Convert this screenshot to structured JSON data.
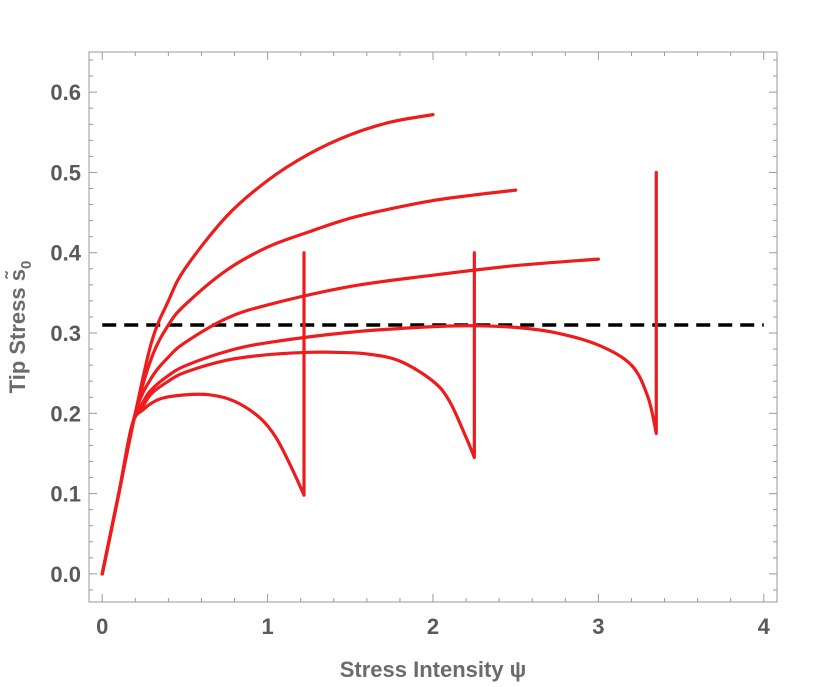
{
  "chart_data": {
    "type": "line",
    "xlabel": "Stress Intensity ψ",
    "ylabel": "Tip Stress s̃",
    "ylabel_subscript": "0",
    "xlim": [
      -0.08,
      4.08
    ],
    "ylim": [
      -0.035,
      0.65
    ],
    "x_ticks": [
      "0",
      "1",
      "2",
      "3",
      "4"
    ],
    "y_ticks": [
      "0.0",
      "0.1",
      "0.2",
      "0.3",
      "0.4",
      "0.5",
      "0.6"
    ],
    "threshold": {
      "y": 0.31,
      "x_range": [
        0,
        4
      ],
      "color": "#000000",
      "style": "dashed"
    },
    "series_color": "#ee1c1c",
    "series": [
      {
        "x": [
          0,
          0.1,
          0.2,
          0.3,
          0.4,
          0.5,
          0.75,
          1.0,
          1.25,
          1.5,
          1.75,
          2.0
        ],
        "y": [
          0,
          0.1,
          0.2,
          0.29,
          0.34,
          0.38,
          0.445,
          0.49,
          0.523,
          0.547,
          0.563,
          0.572
        ]
      },
      {
        "x": [
          0,
          0.1,
          0.2,
          0.3,
          0.4,
          0.5,
          0.75,
          1.0,
          1.25,
          1.5,
          1.75,
          2.0,
          2.25,
          2.5
        ],
        "y": [
          0,
          0.1,
          0.2,
          0.27,
          0.31,
          0.335,
          0.378,
          0.407,
          0.426,
          0.443,
          0.455,
          0.465,
          0.472,
          0.478
        ]
      },
      {
        "x": [
          0,
          0.1,
          0.2,
          0.3,
          0.4,
          0.5,
          0.75,
          1.0,
          1.5,
          2.0,
          2.5,
          3.0
        ],
        "y": [
          0,
          0.1,
          0.2,
          0.245,
          0.27,
          0.288,
          0.318,
          0.335,
          0.358,
          0.372,
          0.384,
          0.392
        ]
      },
      {
        "x": [
          0,
          0.1,
          0.18,
          0.25,
          0.3,
          0.4,
          0.5,
          0.75,
          1.0,
          1.5,
          2.0,
          2.25,
          2.5,
          2.75,
          3.0,
          3.2,
          3.3,
          3.35,
          3.35
        ],
        "y": [
          0,
          0.1,
          0.185,
          0.215,
          0.23,
          0.247,
          0.259,
          0.277,
          0.288,
          0.301,
          0.308,
          0.309,
          0.307,
          0.3,
          0.285,
          0.26,
          0.22,
          0.175,
          0.5
        ]
      },
      {
        "x": [
          0,
          0.1,
          0.18,
          0.25,
          0.3,
          0.4,
          0.5,
          0.75,
          1.0,
          1.25,
          1.4,
          1.6,
          1.8,
          2.0,
          2.1,
          2.2,
          2.25,
          2.25
        ],
        "y": [
          0,
          0.1,
          0.185,
          0.21,
          0.225,
          0.24,
          0.251,
          0.266,
          0.273,
          0.276,
          0.276,
          0.274,
          0.265,
          0.24,
          0.215,
          0.17,
          0.145,
          0.4
        ]
      },
      {
        "x": [
          0,
          0.1,
          0.18,
          0.25,
          0.35,
          0.5,
          0.65,
          0.8,
          0.95,
          1.05,
          1.15,
          1.22,
          1.22
        ],
        "y": [
          0,
          0.1,
          0.185,
          0.205,
          0.218,
          0.223,
          0.223,
          0.215,
          0.195,
          0.17,
          0.13,
          0.098,
          0.4
        ]
      }
    ]
  }
}
